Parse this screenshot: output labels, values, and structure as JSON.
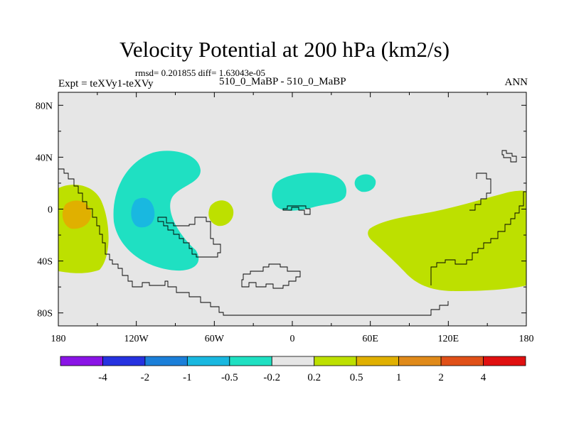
{
  "chart_data": {
    "type": "contour_map",
    "title": "Velocity Potential at 200 hPa (km2/s)",
    "stats_text": "rmsd= 0.201855  diff= 1.63043e-05",
    "left_label": "Expt = teXVy1-teXVy",
    "center_label": "510_0_MaBP - 510_0_MaBP",
    "right_label": "ANN",
    "x_ticks": [
      "180",
      "120W",
      "60W",
      "0",
      "60E",
      "120E",
      "180"
    ],
    "y_ticks": [
      "80N",
      "40N",
      "0",
      "40S",
      "80S"
    ],
    "xlim": [
      -180,
      180
    ],
    "ylim": [
      -90,
      90
    ],
    "colorbar": {
      "levels": [
        "-4",
        "-2",
        "-1",
        "-0.5",
        "-0.2",
        "0.2",
        "0.5",
        "1",
        "2",
        "4"
      ],
      "colors": [
        "#8a14e6",
        "#2632e0",
        "#1b7fd9",
        "#19b8e0",
        "#1fe0c2",
        "#e6e6e6",
        "#bde000",
        "#e0b000",
        "#e08a1a",
        "#e05018",
        "#e01010"
      ]
    },
    "regions": [
      {
        "name": "central-pacific-positive",
        "level": "0.2 to 0.5",
        "color": "#bde000"
      },
      {
        "name": "central-pacific-core",
        "level": "0.5 to 1",
        "color": "#e0b000"
      },
      {
        "name": "south-america-negative",
        "level": "-0.5 to -0.2",
        "color": "#1fe0c2"
      },
      {
        "name": "south-america-core",
        "level": "-1 to -0.5",
        "color": "#19b8e0"
      },
      {
        "name": "atlantic-positive",
        "level": "0.2 to 0.5",
        "color": "#bde000"
      },
      {
        "name": "africa-negative",
        "level": "-0.5 to -0.2",
        "color": "#1fe0c2"
      },
      {
        "name": "arabia-negative",
        "level": "-0.5 to -0.2",
        "color": "#1fe0c2"
      },
      {
        "name": "indo-pacific-positive",
        "level": "0.2 to 0.5",
        "color": "#bde000"
      }
    ]
  }
}
